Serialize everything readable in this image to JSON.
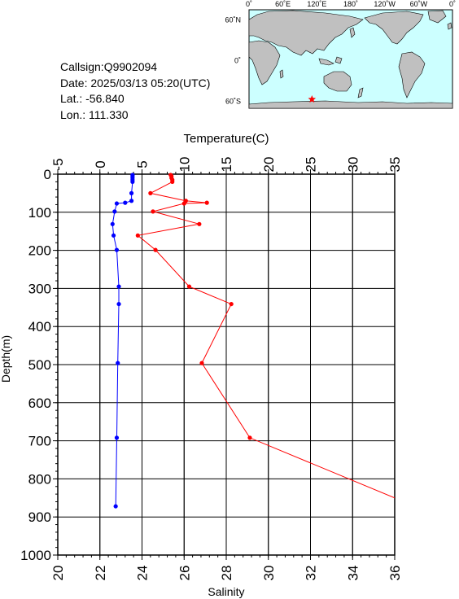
{
  "info": {
    "callsign": "Callsign:Q9902094",
    "date": "Date:  2025/03/13 05:20(UTC)",
    "lat": "Lat.:  -56.840",
    "lon": "Lon.:  111.330"
  },
  "map": {
    "lon_labels": [
      "0˚",
      "60˚E",
      "120˚E",
      "180˚",
      "120˚W",
      "60˚W",
      "0˚"
    ],
    "lat_labels": [
      "60˚N",
      "0˚",
      "60˚S"
    ],
    "station": {
      "lon": 111.33,
      "lat": -56.84
    },
    "colors": {
      "ocean": "#ccffff",
      "land": "#c0c0c0",
      "marker": "#ff0000"
    }
  },
  "chart_data": {
    "type": "line",
    "ylabel": "Depth(m)",
    "ylim": [
      0,
      1000
    ],
    "yticks": [
      0,
      100,
      200,
      300,
      400,
      500,
      600,
      700,
      800,
      900,
      1000
    ],
    "y_inverted": true,
    "grid": true,
    "top_axis": {
      "label": "Temperature(C)",
      "range": [
        -5,
        35
      ],
      "ticks": [
        "-5",
        "0",
        "5",
        "10",
        "15",
        "20",
        "25",
        "30",
        "35"
      ]
    },
    "bottom_axis": {
      "label": "Salinity",
      "range": [
        20,
        36
      ],
      "ticks": [
        "20",
        "22",
        "24",
        "26",
        "28",
        "30",
        "32",
        "34",
        "36"
      ]
    },
    "series": [
      {
        "axis": "top",
        "color": "#ff0000",
        "points": [
          [
            8.4,
            2
          ],
          [
            8.5,
            5
          ],
          [
            8.5,
            10
          ],
          [
            8.6,
            15
          ],
          [
            8.6,
            20
          ],
          [
            6.0,
            50
          ],
          [
            10.2,
            70
          ],
          [
            12.7,
            75
          ],
          [
            10.0,
            77
          ],
          [
            6.3,
            98
          ],
          [
            11.8,
            131
          ],
          [
            4.5,
            161
          ],
          [
            6.6,
            199
          ],
          [
            10.6,
            295
          ],
          [
            15.6,
            341
          ],
          [
            12.1,
            496
          ],
          [
            17.8,
            692
          ],
          [
            35.0,
            850
          ]
        ]
      },
      {
        "axis": "bottom",
        "color": "#0000ff",
        "points": [
          [
            23.55,
            2
          ],
          [
            23.55,
            5
          ],
          [
            23.55,
            10
          ],
          [
            23.55,
            15
          ],
          [
            23.55,
            20
          ],
          [
            23.5,
            50
          ],
          [
            23.5,
            70
          ],
          [
            23.2,
            75
          ],
          [
            22.8,
            77
          ],
          [
            22.7,
            98
          ],
          [
            22.6,
            131
          ],
          [
            22.65,
            161
          ],
          [
            22.8,
            199
          ],
          [
            22.9,
            295
          ],
          [
            22.9,
            341
          ],
          [
            22.85,
            496
          ],
          [
            22.8,
            692
          ],
          [
            22.75,
            872
          ]
        ]
      }
    ]
  }
}
